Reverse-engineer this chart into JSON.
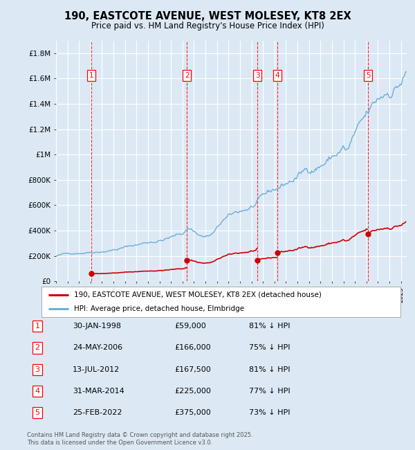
{
  "title": "190, EASTCOTE AVENUE, WEST MOLESEY, KT8 2EX",
  "subtitle": "Price paid vs. HM Land Registry's House Price Index (HPI)",
  "background_color": "#dce9f5",
  "plot_bg_color": "#dce9f5",
  "grid_color": "#ffffff",
  "hpi_color": "#6baed6",
  "price_color": "#cc0000",
  "xmin": 1995.0,
  "xmax": 2025.5,
  "ymin": 0,
  "ymax": 1900000,
  "yticks": [
    0,
    200000,
    400000,
    600000,
    800000,
    1000000,
    1200000,
    1400000,
    1600000,
    1800000
  ],
  "ytick_labels": [
    "£0",
    "£200K",
    "£400K",
    "£600K",
    "£800K",
    "£1M",
    "£1.2M",
    "£1.4M",
    "£1.6M",
    "£1.8M"
  ],
  "xtick_years": [
    1995,
    1996,
    1997,
    1998,
    1999,
    2000,
    2001,
    2002,
    2003,
    2004,
    2005,
    2006,
    2007,
    2008,
    2009,
    2010,
    2011,
    2012,
    2013,
    2014,
    2015,
    2016,
    2017,
    2018,
    2019,
    2020,
    2021,
    2022,
    2023,
    2024,
    2025
  ],
  "sales": [
    {
      "num": 1,
      "date": "30-JAN-1998",
      "year": 1998.08,
      "price": 59000,
      "pct": "81%"
    },
    {
      "num": 2,
      "date": "24-MAY-2006",
      "year": 2006.39,
      "price": 166000,
      "pct": "75%"
    },
    {
      "num": 3,
      "date": "13-JUL-2012",
      "year": 2012.53,
      "price": 167500,
      "pct": "81%"
    },
    {
      "num": 4,
      "date": "31-MAR-2014",
      "year": 2014.25,
      "price": 225000,
      "pct": "77%"
    },
    {
      "num": 5,
      "date": "25-FEB-2022",
      "year": 2022.15,
      "price": 375000,
      "pct": "73%"
    }
  ],
  "legend_line1": "190, EASTCOTE AVENUE, WEST MOLESEY, KT8 2EX (detached house)",
  "legend_line2": "HPI: Average price, detached house, Elmbridge",
  "footer": "Contains HM Land Registry data © Crown copyright and database right 2025.\nThis data is licensed under the Open Government Licence v3.0.",
  "table_rows": [
    [
      "1",
      "30-JAN-1998",
      "£59,000",
      "81% ↓ HPI"
    ],
    [
      "2",
      "24-MAY-2006",
      "£166,000",
      "75% ↓ HPI"
    ],
    [
      "3",
      "13-JUL-2012",
      "£167,500",
      "81% ↓ HPI"
    ],
    [
      "4",
      "31-MAR-2014",
      "£225,000",
      "77% ↓ HPI"
    ],
    [
      "5",
      "25-FEB-2022",
      "£375,000",
      "73% ↓ HPI"
    ]
  ]
}
